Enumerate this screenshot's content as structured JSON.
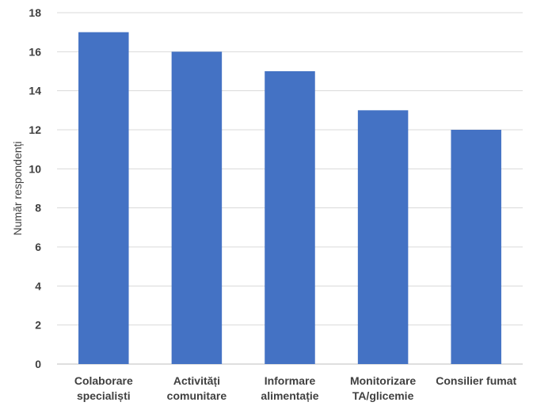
{
  "chart_data": {
    "type": "bar",
    "categories": [
      [
        "Colaborare",
        "specialiști"
      ],
      [
        "Activități",
        "comunitare"
      ],
      [
        "Informare",
        "alimentație"
      ],
      [
        "Monitorizare",
        "TA/glicemie"
      ],
      [
        "Consilier fumat"
      ]
    ],
    "values": [
      17,
      16,
      15,
      13,
      12
    ],
    "ylabel": "Număr respondenți",
    "ylim": [
      0,
      18
    ],
    "yticks": [
      0,
      2,
      4,
      6,
      8,
      10,
      12,
      14,
      16,
      18
    ],
    "grid": true,
    "bar_color": "#4472c4"
  }
}
